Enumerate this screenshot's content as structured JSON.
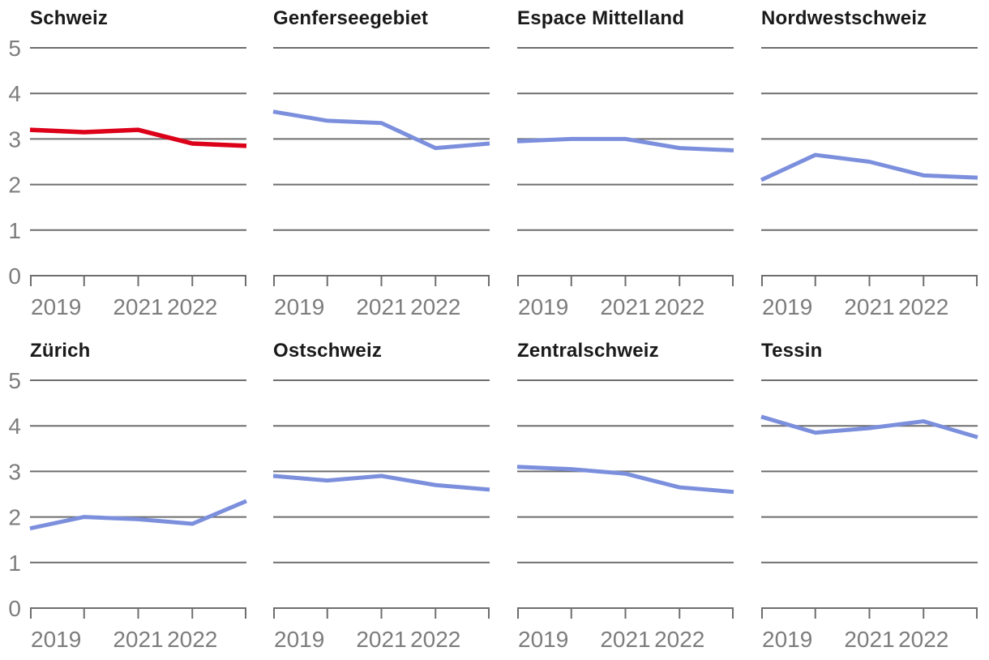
{
  "page": {
    "background": "#ffffff",
    "description": "Small-multiples line chart grid of Swiss regions, values by year"
  },
  "colors": {
    "highlight_red": "#dc0019",
    "line_blue": "#7b8fdd",
    "gridline_gray": "#6e6e6e",
    "axis_gray": "#6e6e6e",
    "tick_label_gray": "#7d7d7d",
    "title_color": "#1a1a1a",
    "background": "#ffffff"
  },
  "chart_data": {
    "type": "line",
    "layout": "small-multiples 2 rows x 4 columns",
    "x_categories": [
      "2019",
      "2020",
      "2021",
      "2022",
      "2023"
    ],
    "x_axis_labels_shown": [
      {
        "label": "2019",
        "index": 0,
        "anchor": "start"
      },
      {
        "label": "2021",
        "index": 2,
        "anchor": "middle"
      },
      {
        "label": "2022",
        "index": 3,
        "anchor": "middle"
      }
    ],
    "ylim": [
      0,
      5
    ],
    "y_ticks": [
      5,
      4,
      3,
      2,
      1,
      0
    ],
    "grid": true,
    "legend": "none",
    "charts": [
      {
        "title": "Schweiz",
        "values": [
          3.2,
          3.15,
          3.2,
          2.9,
          2.85
        ],
        "color_key": "highlight_red",
        "highlighted": true,
        "show_y_labels": true
      },
      {
        "title": "Genferseegebiet",
        "values": [
          3.6,
          3.4,
          3.35,
          2.8,
          2.9
        ],
        "color_key": "line_blue",
        "highlighted": false,
        "show_y_labels": false
      },
      {
        "title": "Espace Mittelland",
        "values": [
          2.95,
          3.0,
          3.0,
          2.8,
          2.75
        ],
        "color_key": "line_blue",
        "highlighted": false,
        "show_y_labels": false
      },
      {
        "title": "Nordwestschweiz",
        "values": [
          2.1,
          2.65,
          2.5,
          2.2,
          2.15
        ],
        "color_key": "line_blue",
        "highlighted": false,
        "show_y_labels": false
      },
      {
        "title": "Zürich",
        "values": [
          1.75,
          2.0,
          1.95,
          1.85,
          2.35
        ],
        "color_key": "line_blue",
        "highlighted": false,
        "show_y_labels": true
      },
      {
        "title": "Ostschweiz",
        "values": [
          2.9,
          2.8,
          2.9,
          2.7,
          2.6
        ],
        "color_key": "line_blue",
        "highlighted": false,
        "show_y_labels": false
      },
      {
        "title": "Zentralschweiz",
        "values": [
          3.1,
          3.05,
          2.95,
          2.65,
          2.55
        ],
        "color_key": "line_blue",
        "highlighted": false,
        "show_y_labels": false
      },
      {
        "title": "Tessin",
        "values": [
          4.2,
          3.85,
          3.95,
          4.1,
          3.75
        ],
        "color_key": "line_blue",
        "highlighted": false,
        "show_y_labels": false
      }
    ]
  }
}
